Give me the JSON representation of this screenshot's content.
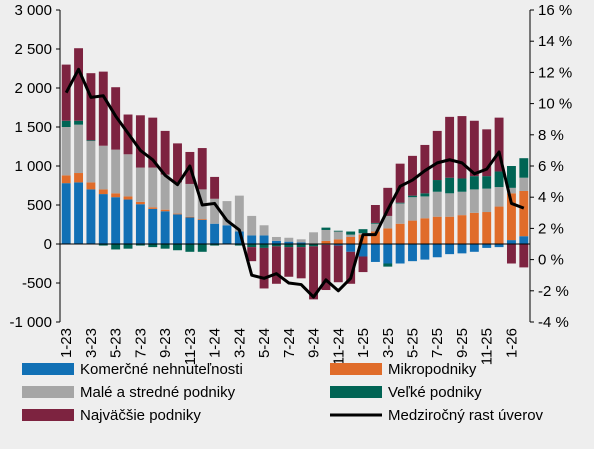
{
  "chart_data": {
    "type": "bar",
    "stacked": true,
    "categories": [
      "1-23",
      "2-23",
      "3-23",
      "4-23",
      "5-23",
      "6-23",
      "7-23",
      "8-23",
      "9-23",
      "10-23",
      "11-23",
      "12-23",
      "1-24",
      "2-24",
      "3-24",
      "4-24",
      "5-24",
      "6-24",
      "7-24",
      "8-24",
      "9-24",
      "10-24",
      "11-24",
      "12-24",
      "1-25",
      "2-25",
      "3-25",
      "4-25",
      "5-25",
      "6-25",
      "7-25",
      "8-25",
      "9-25",
      "10-25",
      "11-25",
      "12-25",
      "1-26",
      "2-26"
    ],
    "x_tick_labels": [
      "1-23",
      "3-23",
      "5-23",
      "7-23",
      "9-23",
      "11-23",
      "1-24",
      "3-24",
      "5-24",
      "7-24",
      "9-24",
      "11-24",
      "1-25",
      "3-25",
      "5-25",
      "7-25",
      "9-25",
      "11-25",
      "1-26"
    ],
    "y_left": {
      "ylim": [
        -1000,
        3000
      ],
      "ticks": [
        -1000,
        -500,
        0,
        500,
        1000,
        1500,
        2000,
        2500,
        3000
      ],
      "tick_labels": [
        "-1 000",
        "-500",
        "0",
        "500",
        "1 000",
        "1 500",
        "2 000",
        "2 500",
        "3 000"
      ]
    },
    "y_right": {
      "ylim": [
        -4,
        16
      ],
      "ticks": [
        -4,
        -2,
        0,
        2,
        4,
        6,
        8,
        10,
        12,
        14,
        16
      ],
      "tick_labels": [
        "-4 %",
        "-2 %",
        "0 %",
        "2 %",
        "4 %",
        "6 %",
        "8 %",
        "10 %",
        "12 %",
        "14 %",
        "16 %"
      ]
    },
    "gridlines": false,
    "series": [
      {
        "name": "Komerčné nehnuteľnosti",
        "kind": "bar",
        "color": "#1170b5",
        "values": [
          780,
          790,
          700,
          640,
          600,
          570,
          510,
          450,
          420,
          380,
          340,
          310,
          260,
          240,
          160,
          110,
          110,
          40,
          30,
          20,
          0,
          -10,
          -20,
          -100,
          -160,
          -230,
          -250,
          -250,
          -220,
          -200,
          -170,
          -130,
          -120,
          -100,
          -50,
          -40,
          50,
          100
        ]
      },
      {
        "name": "Mikropodniky",
        "kind": "bar",
        "color": "#e06c2a",
        "values": [
          100,
          120,
          90,
          60,
          50,
          40,
          30,
          20,
          20,
          10,
          10,
          10,
          0,
          0,
          0,
          0,
          0,
          0,
          0,
          0,
          0,
          40,
          60,
          90,
          120,
          160,
          200,
          260,
          300,
          330,
          350,
          350,
          370,
          400,
          410,
          480,
          600,
          580
        ]
      },
      {
        "name": "Malé a stredné podniky",
        "kind": "bar",
        "color": "#a6a6a6",
        "values": [
          620,
          620,
          530,
          560,
          560,
          540,
          440,
          510,
          450,
          400,
          420,
          380,
          320,
          310,
          460,
          250,
          130,
          50,
          50,
          40,
          150,
          140,
          100,
          30,
          20,
          100,
          160,
          260,
          300,
          280,
          320,
          300,
          300,
          300,
          300,
          250,
          70,
          170
        ]
      },
      {
        "name": "Veľké podniky",
        "kind": "bar",
        "color": "#006454",
        "values": [
          80,
          50,
          10,
          -20,
          -70,
          -60,
          -20,
          -40,
          -60,
          -80,
          -100,
          -100,
          -20,
          0,
          -20,
          -40,
          -50,
          -30,
          -40,
          -40,
          -30,
          30,
          10,
          40,
          50,
          10,
          -40,
          10,
          20,
          40,
          150,
          200,
          170,
          170,
          160,
          200,
          280,
          250
        ]
      },
      {
        "name": "Najväčšie podniky",
        "kind": "bar",
        "color": "#7d2340",
        "values": [
          720,
          930,
          860,
          950,
          800,
          510,
          670,
          640,
          560,
          500,
          410,
          530,
          280,
          0,
          0,
          -180,
          -520,
          -480,
          -380,
          -400,
          -680,
          -580,
          -470,
          -410,
          -200,
          230,
          360,
          500,
          510,
          620,
          630,
          780,
          800,
          710,
          600,
          690,
          -250,
          -300
        ]
      },
      {
        "name": "Medziročný rast úverov",
        "kind": "line",
        "axis": "right",
        "color": "#000000",
        "values": [
          10.7,
          12.2,
          10.4,
          10.5,
          9.2,
          8.1,
          7.0,
          6.4,
          5.4,
          4.8,
          6.0,
          3.5,
          3.6,
          2.5,
          1.9,
          -1.0,
          -1.2,
          -0.9,
          -1.5,
          -1.6,
          -2.4,
          -1.3,
          -2.0,
          -1.2,
          1.6,
          1.6,
          3.2,
          4.7,
          5.1,
          5.7,
          6.2,
          6.4,
          6.2,
          5.5,
          5.8,
          6.9,
          3.6,
          3.3
        ]
      }
    ],
    "legend_position": "bottom"
  }
}
